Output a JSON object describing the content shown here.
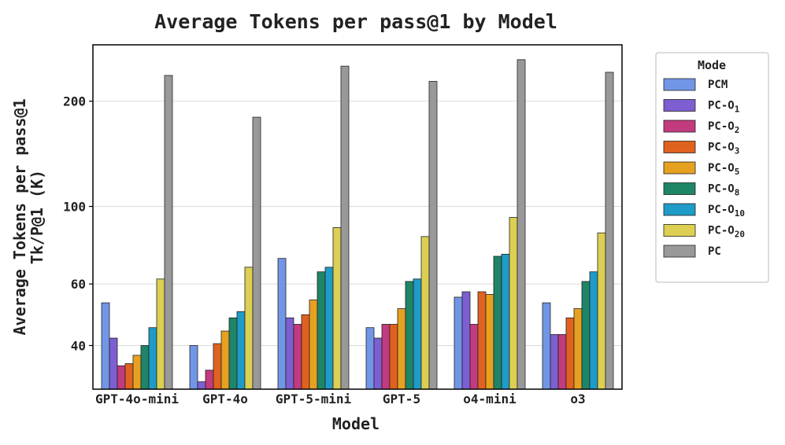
{
  "chart_data": {
    "type": "bar",
    "title": "Average Tokens per pass@1 by Model",
    "xlabel": "Model",
    "ylabel_line1": "Average Tokens per pass@1",
    "ylabel_line2": "Tk/P@1 (K)",
    "yscale": "log",
    "ylim": [
      30,
      290
    ],
    "yticks": [
      40,
      60,
      100,
      200
    ],
    "grid": "horizontal",
    "legend": {
      "title": "Mode",
      "placement": "outside-right"
    },
    "categories": [
      "GPT-4o-mini",
      "GPT-4o",
      "GPT-5-mini",
      "GPT-5",
      "o4-mini",
      "o3"
    ],
    "series": [
      {
        "name": "PCM",
        "base": "PCM",
        "sub": "",
        "color": "#7296e6",
        "values": [
          53,
          40,
          71,
          45,
          55,
          53
        ]
      },
      {
        "name": "PC-O1",
        "base": "PC-O",
        "sub": "1",
        "color": "#7d5fd1",
        "values": [
          42,
          31.5,
          48,
          42,
          57,
          43
        ]
      },
      {
        "name": "PC-O2",
        "base": "PC-O",
        "sub": "2",
        "color": "#c23b7e",
        "values": [
          35,
          34,
          46,
          46,
          46,
          43
        ]
      },
      {
        "name": "PC-O3",
        "base": "PC-O",
        "sub": "3",
        "color": "#e0621f",
        "values": [
          35.5,
          40.5,
          49,
          46,
          57,
          48
        ]
      },
      {
        "name": "PC-O5",
        "base": "PC-O",
        "sub": "5",
        "color": "#e6a120",
        "values": [
          37.5,
          44,
          54,
          51,
          56,
          51
        ]
      },
      {
        "name": "PC-O8",
        "base": "PC-O",
        "sub": "8",
        "color": "#1e8567",
        "values": [
          40,
          48,
          65,
          61,
          72,
          61
        ]
      },
      {
        "name": "PC-O10",
        "base": "PC-O",
        "sub": "10",
        "color": "#1e9bc6",
        "values": [
          45,
          50,
          67,
          62,
          73,
          65
        ]
      },
      {
        "name": "PC-O20",
        "base": "PC-O",
        "sub": "20",
        "color": "#dccf52",
        "values": [
          62,
          67,
          87,
          82,
          93,
          84
        ]
      },
      {
        "name": "PC",
        "base": "PC",
        "sub": "",
        "color": "#999999",
        "values": [
          237,
          180,
          252,
          228,
          263,
          242
        ]
      }
    ]
  }
}
